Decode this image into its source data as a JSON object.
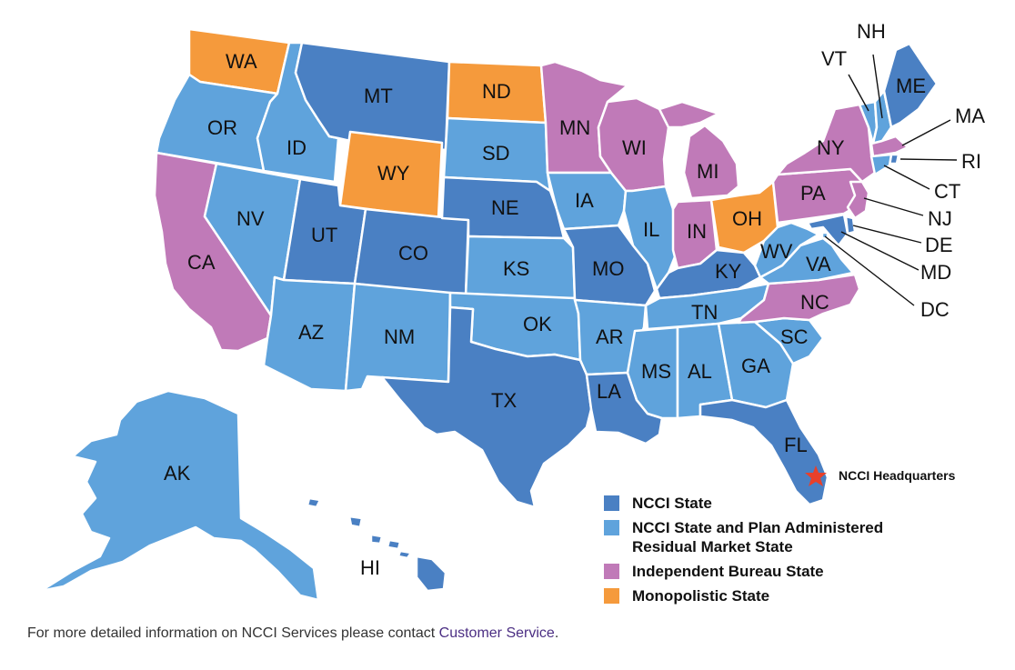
{
  "colors": {
    "ncci_state": "#4a80c3",
    "ncci_residual": "#5fa3dc",
    "independent": "#c07ab8",
    "monopolistic": "#f59a3c",
    "hq_star": "#e8402a"
  },
  "states": {
    "WA": "WA",
    "OR": "OR",
    "CA": "CA",
    "ID": "ID",
    "NV": "NV",
    "MT": "MT",
    "WY": "WY",
    "UT": "UT",
    "AZ": "AZ",
    "CO": "CO",
    "NM": "NM",
    "ND": "ND",
    "SD": "SD",
    "NE": "NE",
    "KS": "KS",
    "OK": "OK",
    "TX": "TX",
    "MN": "MN",
    "IA": "IA",
    "MO": "MO",
    "AR": "AR",
    "LA": "LA",
    "WI": "WI",
    "IL": "IL",
    "MI": "MI",
    "IN": "IN",
    "OH": "OH",
    "KY": "KY",
    "TN": "TN",
    "MS": "MS",
    "AL": "AL",
    "GA": "GA",
    "FL": "FL",
    "SC": "SC",
    "NC": "NC",
    "VA": "VA",
    "WV": "WV",
    "PA": "PA",
    "NY": "NY",
    "VT": "VT",
    "NH": "NH",
    "ME": "ME",
    "MA": "MA",
    "RI": "RI",
    "CT": "CT",
    "NJ": "NJ",
    "DE": "DE",
    "MD": "MD",
    "DC": "DC",
    "AK": "AK",
    "HI": "HI"
  },
  "hq": {
    "label": "NCCI Headquarters",
    "icon": "star-icon"
  },
  "legend": [
    {
      "label": "NCCI State",
      "category": "ncci_state"
    },
    {
      "label": "NCCI State and Plan Administered Residual Market State",
      "category": "ncci_residual"
    },
    {
      "label": "Independent Bureau State",
      "category": "independent"
    },
    {
      "label": "Monopolistic State",
      "category": "monopolistic"
    }
  ],
  "footer": {
    "text": "For more detailed information on NCCI Services please contact ",
    "link": "Customer Service",
    "end": "."
  }
}
